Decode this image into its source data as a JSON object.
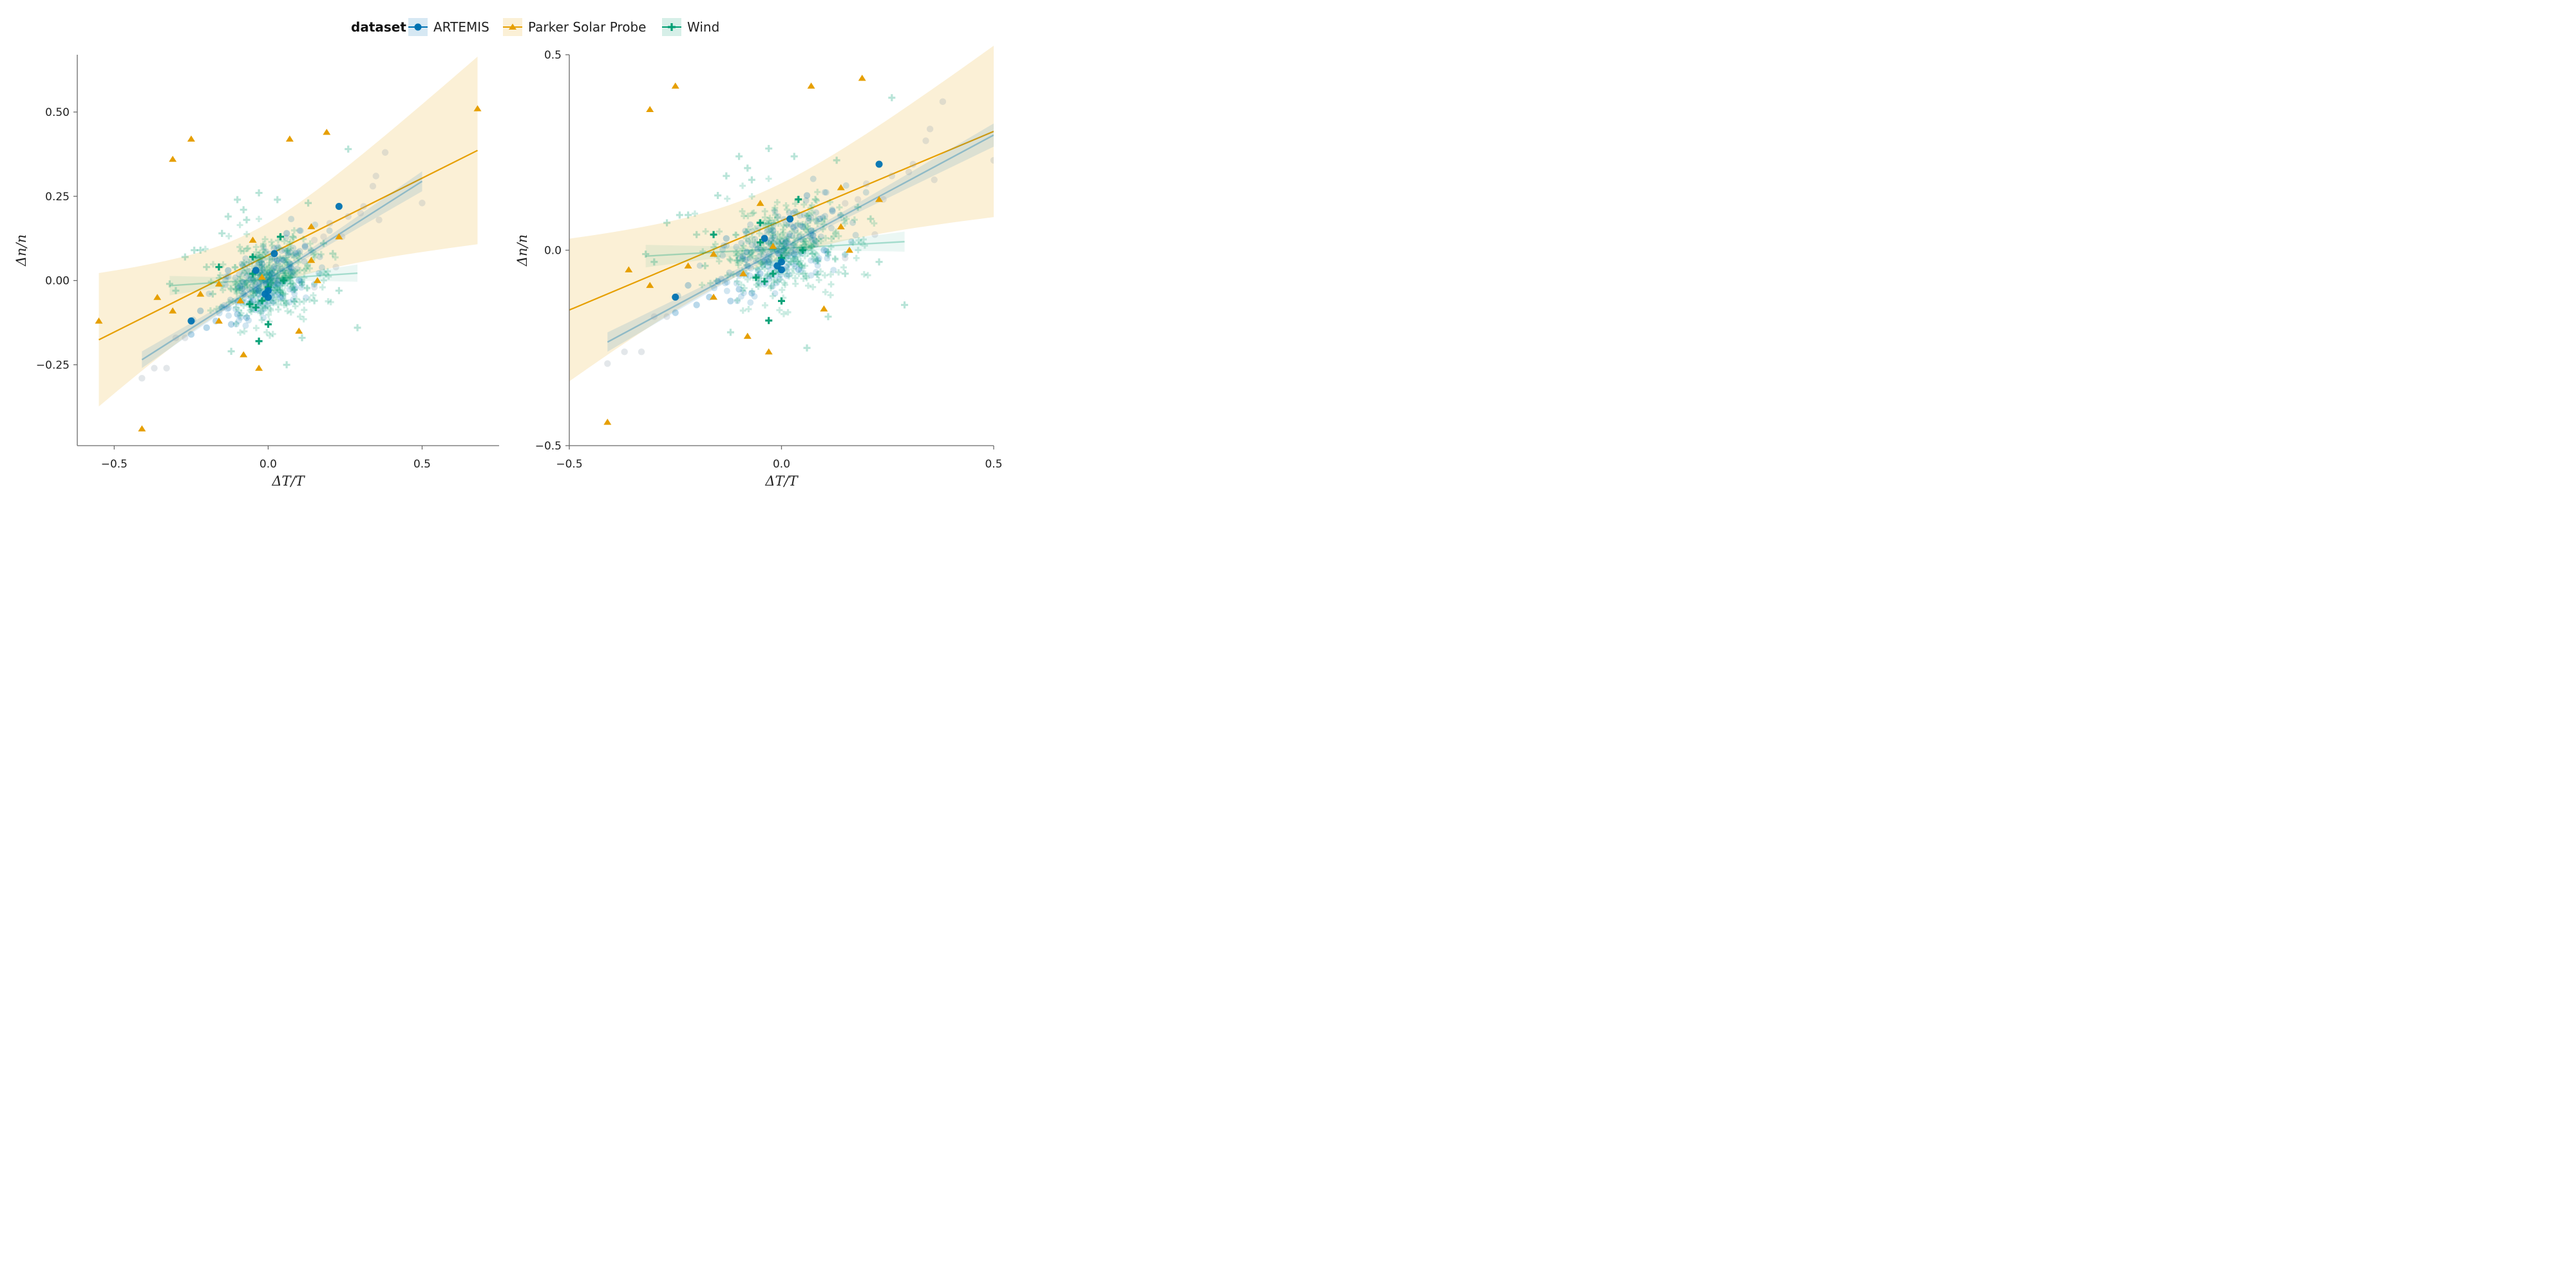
{
  "legend": {
    "title": "dataset",
    "entries": [
      {
        "key": "artemis",
        "label": "ARTEMIS",
        "color": "#0072B2",
        "marker": "circle"
      },
      {
        "key": "psp",
        "label": "Parker Solar Probe",
        "color": "#E69F00",
        "marker": "triangle"
      },
      {
        "key": "wind",
        "label": "Wind",
        "color": "#009E73",
        "marker": "plus"
      }
    ]
  },
  "chart_data": [
    {
      "type": "scatter",
      "panel": "left",
      "xlabel": "ΔT/T",
      "ylabel": "Δn/n",
      "xlim": [
        -0.62,
        0.75
      ],
      "ylim": [
        -0.49,
        0.67
      ],
      "xticks": [
        -0.5,
        0.0,
        0.5
      ],
      "xtick_labels": [
        "−0.5",
        "0.0",
        "0.5"
      ],
      "yticks": [
        -0.25,
        0.0,
        0.25,
        0.5
      ],
      "ytick_labels": [
        "−0.25",
        "0.00",
        "0.25",
        "0.50"
      ],
      "grid": false
    },
    {
      "type": "scatter",
      "panel": "right",
      "xlabel": "ΔT/T",
      "ylabel": "Δn/n",
      "xlim": [
        -0.5,
        0.5
      ],
      "ylim": [
        -0.5,
        0.5
      ],
      "xticks": [
        -0.5,
        0.0,
        0.5
      ],
      "xtick_labels": [
        "−0.5",
        "0.0",
        "0.5"
      ],
      "yticks": [
        -0.5,
        0.0,
        0.5
      ],
      "ytick_labels": [
        "−0.5",
        "0.0",
        "0.5"
      ],
      "grid": false
    }
  ],
  "series_data": {
    "artemis_highlight": [
      [
        -0.25,
        -0.12
      ],
      [
        -0.04,
        0.03
      ],
      [
        0.02,
        0.08
      ],
      [
        0.0,
        -0.03
      ],
      [
        0.0,
        -0.05
      ],
      [
        -0.01,
        -0.04
      ],
      [
        0.23,
        0.22
      ]
    ],
    "artemis_faded": [
      [
        -0.41,
        -0.29
      ],
      [
        -0.37,
        -0.26
      ],
      [
        -0.33,
        -0.26
      ],
      [
        -0.3,
        -0.17
      ],
      [
        -0.27,
        -0.17
      ],
      [
        -0.25,
        -0.16
      ],
      [
        -0.2,
        -0.14
      ],
      [
        -0.17,
        -0.12
      ],
      [
        -0.15,
        -0.08
      ],
      [
        -0.12,
        -0.13
      ],
      [
        -0.1,
        -0.1
      ],
      [
        -0.07,
        -0.11
      ],
      [
        -0.05,
        -0.06
      ],
      [
        -0.03,
        -0.03
      ],
      [
        -0.02,
        0.05
      ],
      [
        -0.01,
        0.0
      ],
      [
        0.01,
        0.02
      ],
      [
        0.03,
        -0.01
      ],
      [
        0.05,
        0.06
      ],
      [
        0.07,
        0.05
      ],
      [
        0.09,
        0.08
      ],
      [
        0.12,
        0.1
      ],
      [
        0.15,
        0.12
      ],
      [
        0.18,
        0.13
      ],
      [
        0.2,
        0.17
      ],
      [
        0.22,
        0.04
      ],
      [
        0.24,
        0.13
      ],
      [
        0.3,
        0.2
      ],
      [
        0.31,
        0.22
      ],
      [
        0.34,
        0.28
      ],
      [
        0.35,
        0.31
      ],
      [
        0.36,
        0.18
      ],
      [
        0.38,
        0.38
      ],
      [
        0.5,
        0.23
      ],
      [
        -0.08,
        -0.04
      ],
      [
        0.04,
        -0.05
      ],
      [
        0.1,
        0.0
      ],
      [
        -0.13,
        0.03
      ],
      [
        0.06,
        0.14
      ],
      [
        0.26,
        0.19
      ],
      [
        -0.22,
        -0.09
      ],
      [
        0.15,
        -0.02
      ]
    ],
    "psp": [
      [
        -0.55,
        -0.12
      ],
      [
        -0.41,
        -0.44
      ],
      [
        -0.36,
        -0.05
      ],
      [
        -0.31,
        0.36
      ],
      [
        -0.31,
        -0.09
      ],
      [
        -0.25,
        0.42
      ],
      [
        -0.22,
        -0.04
      ],
      [
        -0.16,
        -0.12
      ],
      [
        -0.16,
        -0.01
      ],
      [
        -0.09,
        -0.06
      ],
      [
        -0.08,
        -0.22
      ],
      [
        -0.05,
        0.12
      ],
      [
        -0.03,
        -0.26
      ],
      [
        -0.02,
        0.01
      ],
      [
        0.07,
        0.42
      ],
      [
        0.1,
        -0.15
      ],
      [
        0.14,
        0.16
      ],
      [
        0.14,
        0.06
      ],
      [
        0.16,
        0.0
      ],
      [
        0.19,
        0.44
      ],
      [
        0.23,
        0.13
      ],
      [
        0.68,
        0.51
      ]
    ],
    "wind_highlight": [
      [
        -0.16,
        0.04
      ],
      [
        -0.05,
        0.07
      ],
      [
        -0.05,
        0.02
      ],
      [
        -0.06,
        -0.07
      ],
      [
        -0.04,
        -0.08
      ],
      [
        -0.02,
        -0.06
      ],
      [
        0.0,
        -0.02
      ],
      [
        0.04,
        0.13
      ],
      [
        -0.03,
        -0.18
      ],
      [
        0.0,
        -0.13
      ],
      [
        0.05,
        0.0
      ]
    ],
    "wind_faded": [
      [
        -0.32,
        -0.01
      ],
      [
        -0.3,
        -0.03
      ],
      [
        -0.27,
        0.07
      ],
      [
        -0.24,
        0.09
      ],
      [
        -0.22,
        0.09
      ],
      [
        -0.2,
        0.04
      ],
      [
        -0.18,
        -0.04
      ],
      [
        -0.15,
        0.14
      ],
      [
        -0.13,
        0.19
      ],
      [
        -0.12,
        -0.21
      ],
      [
        -0.1,
        0.24
      ],
      [
        -0.08,
        0.21
      ],
      [
        -0.07,
        0.18
      ],
      [
        -0.03,
        0.26
      ],
      [
        0.03,
        0.24
      ],
      [
        0.06,
        -0.25
      ],
      [
        0.08,
        0.13
      ],
      [
        0.11,
        -0.17
      ],
      [
        0.13,
        0.23
      ],
      [
        0.15,
        -0.06
      ],
      [
        0.18,
        0.11
      ],
      [
        0.21,
        0.08
      ],
      [
        0.23,
        -0.03
      ],
      [
        0.26,
        0.39
      ],
      [
        0.29,
        -0.14
      ]
    ]
  }
}
